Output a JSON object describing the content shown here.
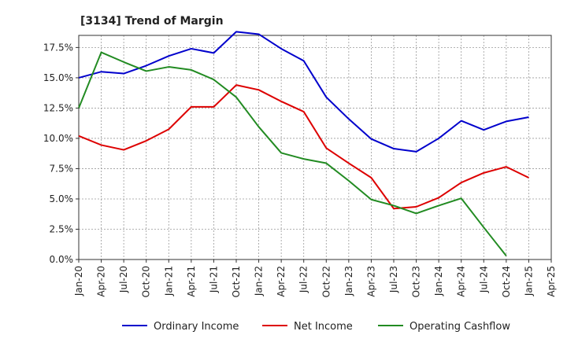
{
  "chart_data": {
    "type": "line",
    "title": "[3134]  Trend of Margin",
    "xlabel": "",
    "ylabel": "",
    "x": [
      "Jan-20",
      "Apr-20",
      "Jul-20",
      "Oct-20",
      "Jan-21",
      "Apr-21",
      "Jul-21",
      "Oct-21",
      "Jan-22",
      "Apr-22",
      "Jul-22",
      "Oct-22",
      "Jan-23",
      "Apr-23",
      "Jul-23",
      "Oct-23",
      "Jan-24",
      "Apr-24",
      "Jul-24",
      "Oct-24",
      "Jan-25",
      "Apr-25"
    ],
    "ylim": [
      0,
      18.5
    ],
    "yticks": [
      "0.0%",
      "2.5%",
      "5.0%",
      "7.5%",
      "10.0%",
      "12.5%",
      "15.0%",
      "17.5%"
    ],
    "grid": true,
    "legend_position": "bottom",
    "series": [
      {
        "name": "Ordinary Income",
        "color": "#0000cc",
        "values": [
          15.0,
          15.5,
          15.35,
          16.0,
          16.8,
          17.4,
          17.05,
          18.8,
          18.6,
          17.4,
          16.4,
          13.4,
          11.6,
          9.95,
          9.15,
          8.9,
          10.0,
          11.45,
          10.7,
          11.4,
          11.75,
          null
        ]
      },
      {
        "name": "Net Income",
        "color": "#dd0000",
        "values": [
          10.2,
          9.45,
          9.05,
          9.8,
          10.75,
          12.6,
          12.6,
          14.4,
          14.0,
          13.05,
          12.2,
          9.2,
          7.95,
          6.75,
          4.2,
          4.35,
          5.1,
          6.35,
          7.15,
          7.65,
          6.75,
          null
        ]
      },
      {
        "name": "Operating Cashflow",
        "color": "#228b22",
        "values": [
          12.5,
          17.1,
          16.3,
          15.55,
          15.9,
          15.65,
          14.85,
          13.4,
          10.95,
          8.8,
          8.3,
          7.95,
          6.5,
          4.95,
          4.45,
          3.8,
          4.45,
          5.05,
          2.65,
          0.3,
          null,
          null
        ]
      }
    ]
  }
}
